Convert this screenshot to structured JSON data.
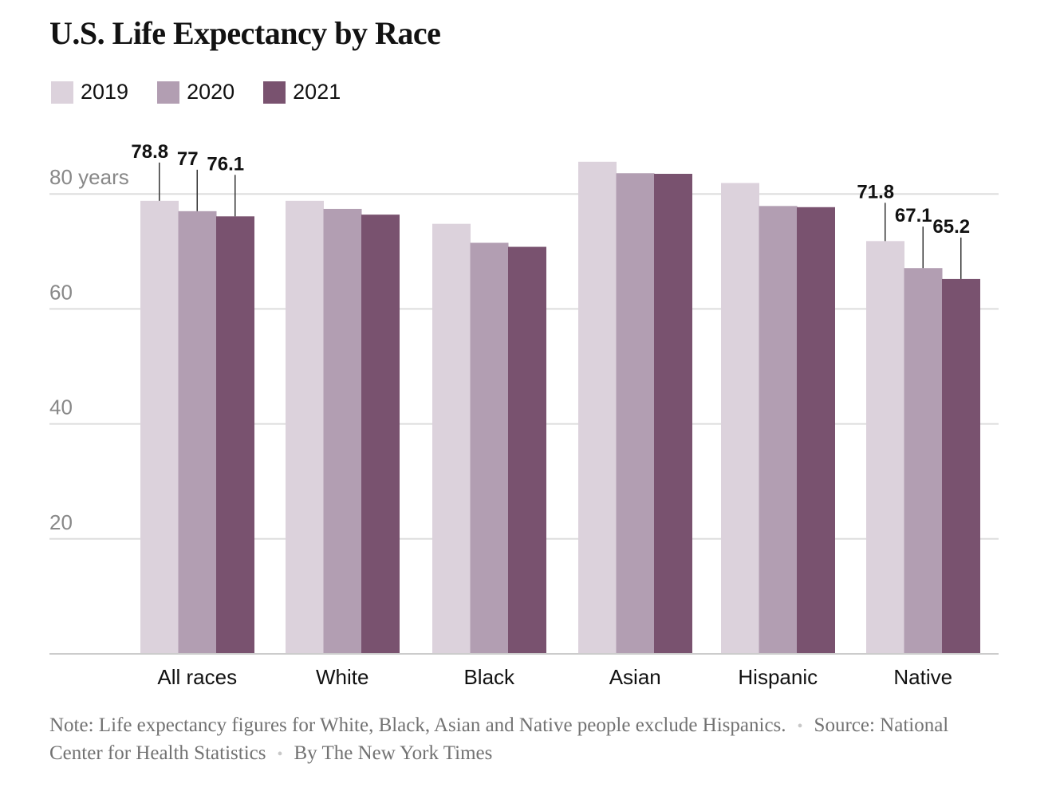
{
  "chart_data": {
    "type": "bar",
    "title": "U.S. Life Expectancy by Race",
    "categories": [
      "All races",
      "White",
      "Black",
      "Asian",
      "Hispanic",
      "Native"
    ],
    "series": [
      {
        "name": "2019",
        "color": "#dcd2dc",
        "values": [
          78.8,
          78.8,
          74.8,
          85.6,
          81.9,
          71.8
        ]
      },
      {
        "name": "2020",
        "color": "#b29eb2",
        "values": [
          77.0,
          77.4,
          71.5,
          83.6,
          77.9,
          67.1
        ]
      },
      {
        "name": "2021",
        "color": "#79526f",
        "values": [
          76.1,
          76.4,
          70.8,
          83.5,
          77.7,
          65.2
        ]
      }
    ],
    "ylim": [
      0,
      90
    ],
    "yticks": [
      {
        "value": 20,
        "label": "20"
      },
      {
        "value": 40,
        "label": "40"
      },
      {
        "value": 60,
        "label": "60"
      },
      {
        "value": 80,
        "label": "80 years"
      }
    ],
    "labeled_categories": [
      "All races",
      "Native"
    ],
    "data_labels": {
      "All races": [
        "78.8",
        "77",
        "76.1"
      ],
      "Native": [
        "71.8",
        "67.1",
        "65.2"
      ]
    },
    "grid": true,
    "legend": "top-left"
  },
  "note": {
    "note_label": "Note:",
    "note_text": "Life expectancy figures for White, Black, Asian and Native people exclude Hispanics.",
    "source_label": "Source:",
    "source_text": "National Center for Health Statistics",
    "credit": "By The New York Times"
  }
}
